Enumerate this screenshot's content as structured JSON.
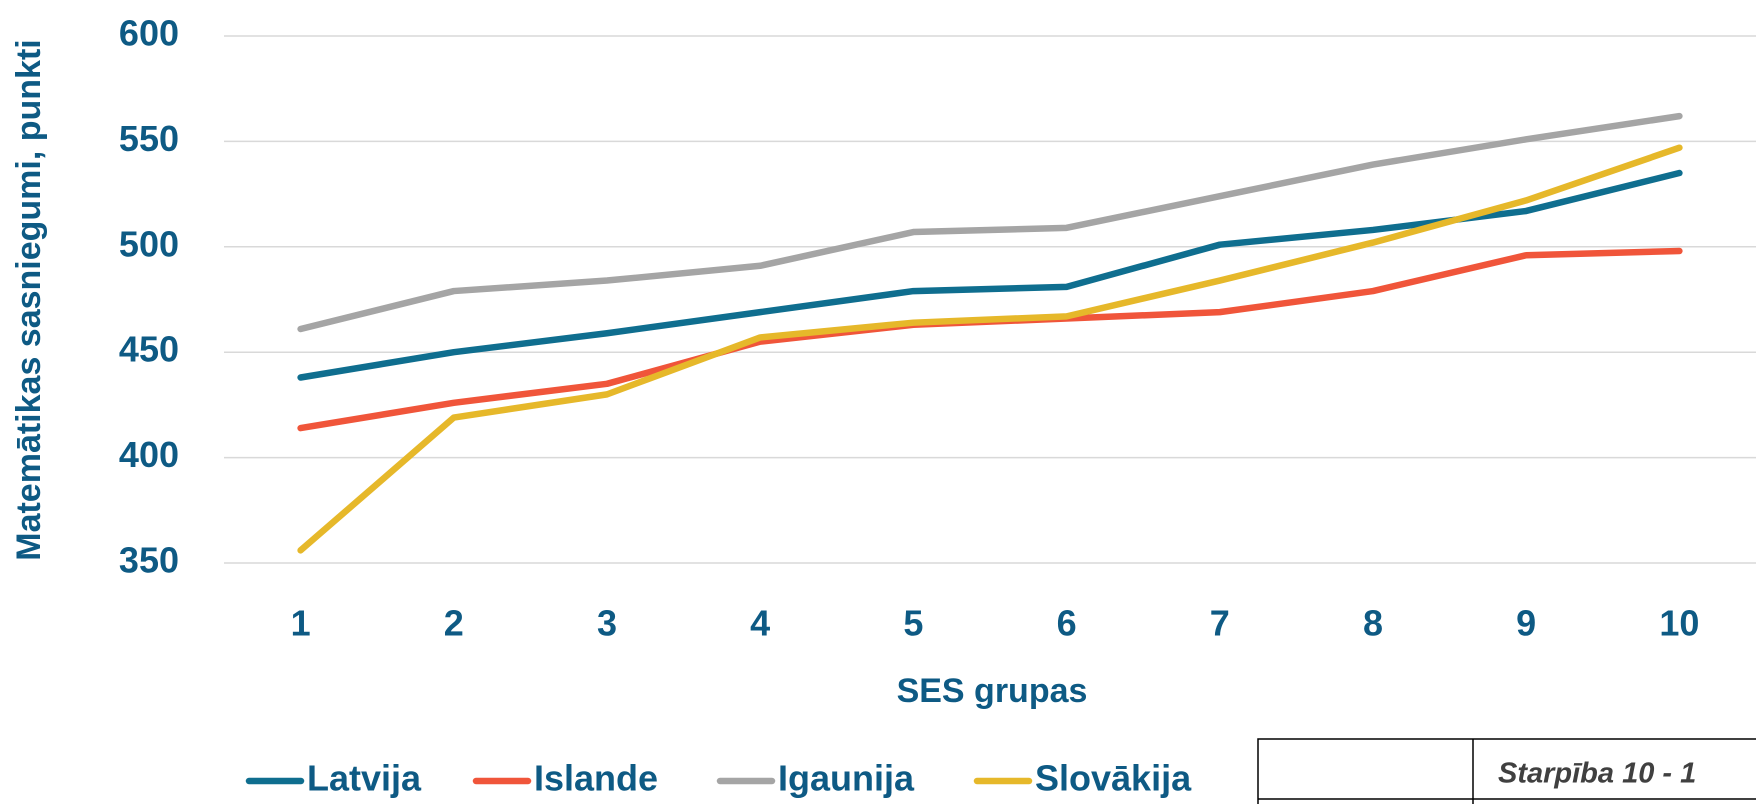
{
  "chart_data": {
    "type": "line",
    "y_label": "Matemātikas sasniegumi, punkti",
    "x_label": "SES grupas",
    "categories": [
      "1",
      "2",
      "3",
      "4",
      "5",
      "6",
      "7",
      "8",
      "9",
      "10"
    ],
    "series": [
      {
        "name": "Latvija",
        "color": "#0f6e8f",
        "values": [
          438,
          450,
          459,
          469,
          479,
          481,
          501,
          508,
          517,
          535
        ]
      },
      {
        "name": "Islande",
        "color": "#f0553a",
        "values": [
          414,
          426,
          435,
          455,
          463,
          466,
          469,
          479,
          496,
          498
        ]
      },
      {
        "name": "Igaunija",
        "color": "#a5a5a5",
        "values": [
          461,
          479,
          484,
          491,
          507,
          509,
          524,
          539,
          551,
          562
        ]
      },
      {
        "name": "Slovākija",
        "color": "#e6b82a",
        "values": [
          356,
          419,
          430,
          457,
          464,
          467,
          484,
          502,
          522,
          547
        ]
      }
    ],
    "ylim": [
      350,
      600
    ],
    "yticks": [
      350,
      400,
      450,
      500,
      550,
      600
    ],
    "grid": true,
    "legend": "bottom",
    "table_header": "Starpība 10 - 1"
  }
}
